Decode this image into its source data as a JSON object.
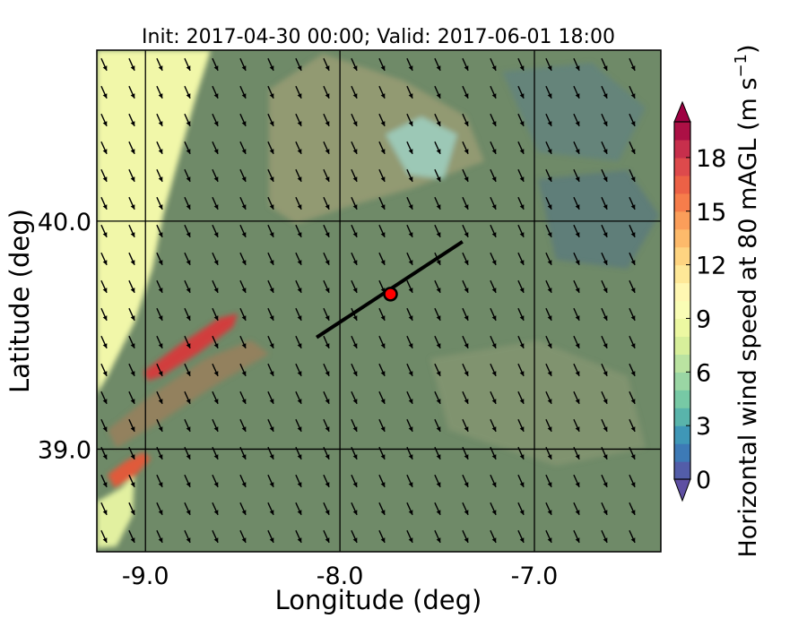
{
  "chart_data": {
    "type": "heatmap",
    "title": "Init: 2017-04-30 00:00; Valid: 2017-06-01 18:00",
    "xlabel": "Longitude (deg)",
    "ylabel": "Latitude (deg)",
    "xlim": [
      -9.25,
      -6.35
    ],
    "ylim": [
      38.55,
      40.75
    ],
    "xticks": [
      -9.0,
      -8.0,
      -7.0
    ],
    "xtick_labels": [
      "-9.0",
      "-8.0",
      "-7.0"
    ],
    "yticks": [
      39.0,
      40.0
    ],
    "ytick_labels": [
      "39.0",
      "40.0"
    ],
    "grid": true,
    "colorbar": {
      "label_main": "Horizontal wind speed at 80 mAGL (m s",
      "label_exp": "−1",
      "label_close": ")",
      "min": 0,
      "max": 20,
      "step": 1,
      "ticks": [
        0,
        3,
        6,
        9,
        12,
        15,
        18
      ],
      "tick_labels": [
        "0",
        "3",
        "6",
        "9",
        "12",
        "15",
        "18"
      ],
      "extend": "both",
      "colormap": "Spectral_r"
    },
    "wind_vectors": {
      "direction": "north-northwest",
      "to": "south-southeast"
    },
    "transect": {
      "start": [
        -8.12,
        39.49
      ],
      "end": [
        -7.37,
        39.91
      ]
    },
    "site_marker": {
      "lon": -7.74,
      "lat": 39.68,
      "color": "#ff0000"
    }
  }
}
